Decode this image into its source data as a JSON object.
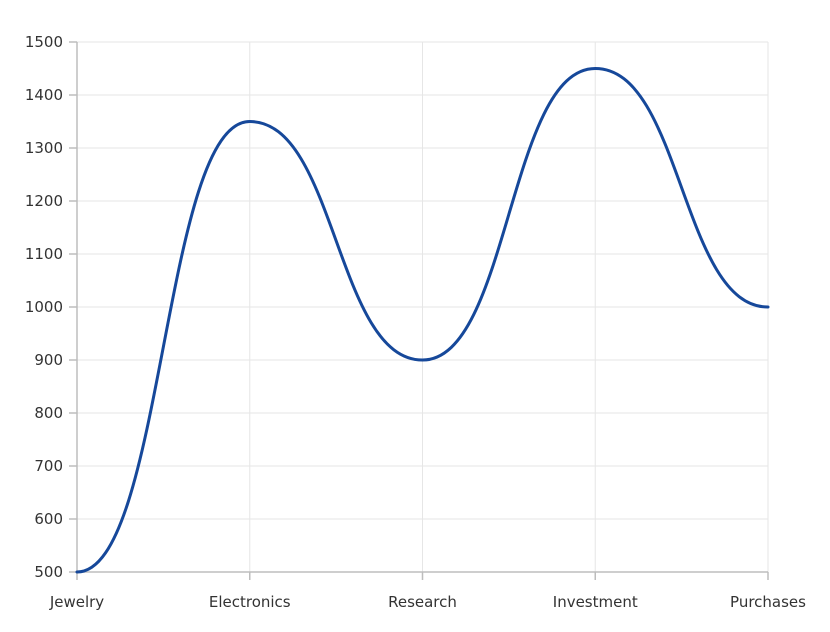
{
  "chart_data": {
    "type": "line",
    "smooth": true,
    "categories": [
      "Jewelry",
      "Electronics",
      "Research",
      "Investment",
      "Purchases"
    ],
    "series": [
      {
        "values": [
          500,
          1350,
          900,
          1450,
          1000
        ]
      }
    ],
    "ylim": [
      500,
      1500
    ],
    "yticks": [
      500,
      600,
      700,
      800,
      900,
      1000,
      1100,
      1200,
      1300,
      1400,
      1500
    ],
    "grid": true,
    "legend": "none",
    "colors": {
      "series": "#16489a",
      "grid": "#e6e6e6",
      "axis": "#bdbdbd",
      "text": "#333333"
    }
  }
}
